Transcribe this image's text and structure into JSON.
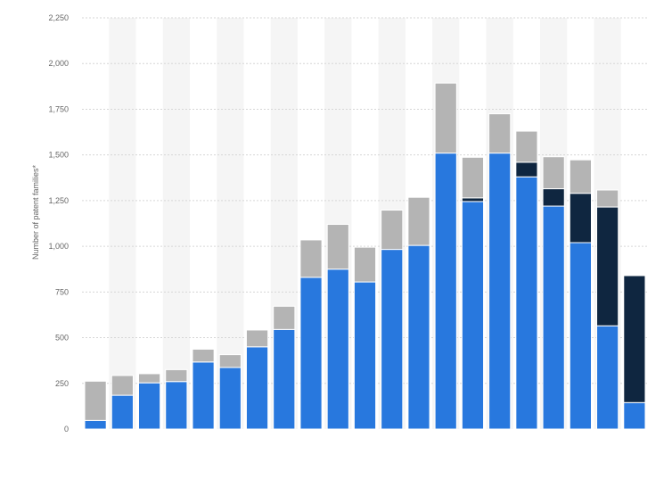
{
  "chart_data": {
    "type": "bar",
    "stacked": true,
    "ylabel": "Number of patent families*",
    "ylim": [
      0,
      2250
    ],
    "y_ticks": [
      "0",
      "250",
      "500",
      "750",
      "1,000",
      "1,250",
      "1,500",
      "1,750",
      "2,000",
      "2,250"
    ],
    "y_tick_values": [
      0,
      250,
      500,
      750,
      1000,
      1250,
      1500,
      1750,
      2000,
      2250
    ],
    "grid": true,
    "bar_count": 21,
    "colors": [
      "#2878de",
      "#0f2640",
      "#b4b4b4"
    ],
    "series": [
      {
        "values": [
          47,
          185,
          253,
          260,
          367,
          337,
          450,
          545,
          830,
          875,
          805,
          983,
          1005,
          1510,
          1245,
          1510,
          1380,
          1220,
          1020,
          565,
          145
        ]
      },
      {
        "values": [
          0,
          0,
          0,
          0,
          0,
          0,
          0,
          0,
          0,
          0,
          0,
          0,
          0,
          0,
          20,
          0,
          80,
          95,
          270,
          650,
          695
        ]
      },
      {
        "values": [
          215,
          108,
          50,
          65,
          70,
          70,
          92,
          127,
          205,
          245,
          190,
          215,
          263,
          383,
          222,
          215,
          170,
          175,
          183,
          93,
          5
        ]
      }
    ]
  }
}
